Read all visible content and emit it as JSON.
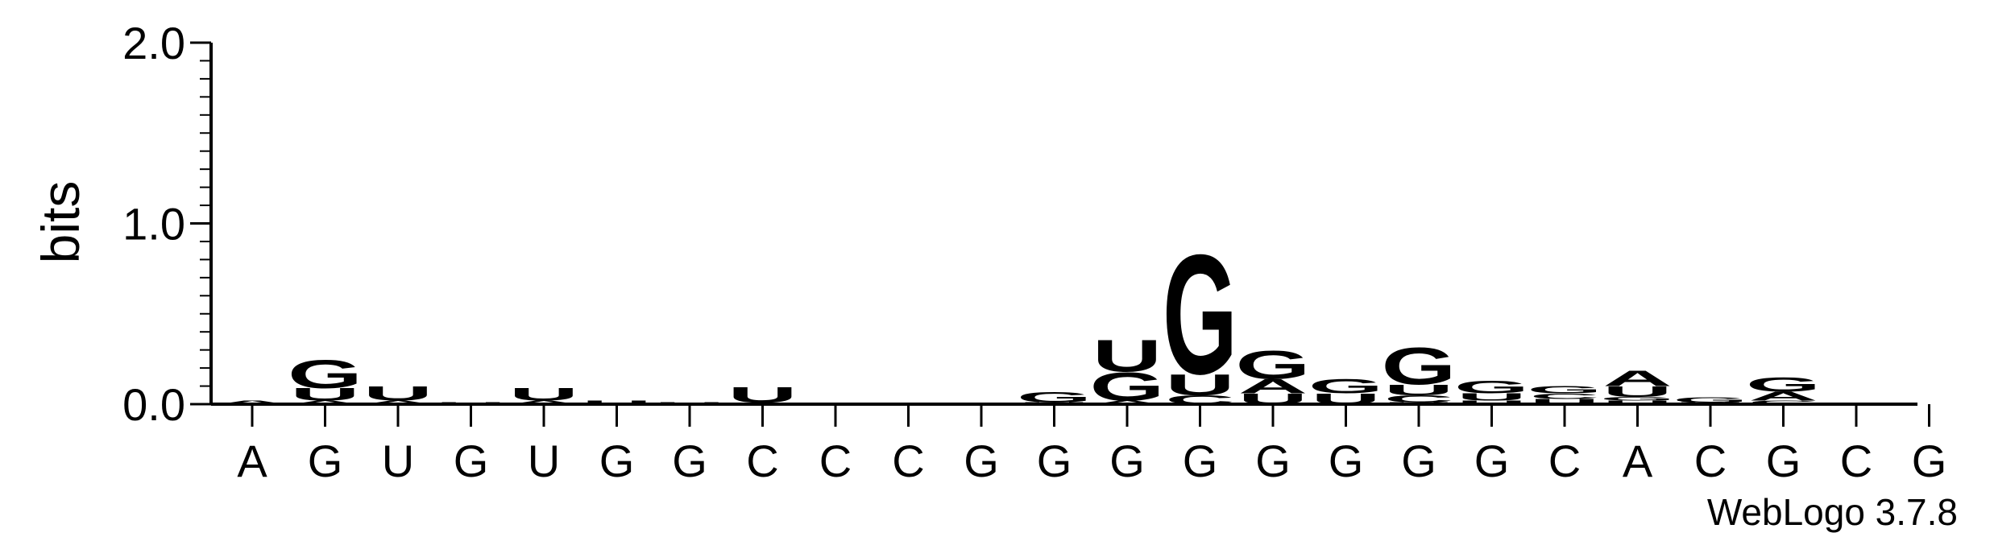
{
  "chart_data": {
    "type": "sequence-logo",
    "ylabel": "bits",
    "ylim": [
      0,
      2.0
    ],
    "yticks": [
      "0.0",
      "1.0",
      "2.0"
    ],
    "credit": "WebLogo 3.7.8",
    "colors": {
      "G": "#1f1ff0",
      "U": "#f7941d",
      "A": "#f7941d",
      "C": "#1f1ff0"
    },
    "positions": [
      {
        "label": "A",
        "stack": [
          {
            "letter": "A",
            "bits": 0.02
          }
        ]
      },
      {
        "label": "G",
        "stack": [
          {
            "letter": "A",
            "bits": 0.02
          },
          {
            "letter": "U",
            "bits": 0.07
          },
          {
            "letter": "G",
            "bits": 0.16
          }
        ]
      },
      {
        "label": "U",
        "stack": [
          {
            "letter": "A",
            "bits": 0.02
          },
          {
            "letter": "U",
            "bits": 0.08
          }
        ]
      },
      {
        "label": "G",
        "stack": [
          {
            "letter": "U",
            "bits": 0.01
          }
        ]
      },
      {
        "label": "U",
        "stack": [
          {
            "letter": "A",
            "bits": 0.02
          },
          {
            "letter": "U",
            "bits": 0.07
          }
        ]
      },
      {
        "label": "G",
        "stack": [
          {
            "letter": "U",
            "bits": 0.02
          }
        ]
      },
      {
        "label": "G",
        "stack": [
          {
            "letter": "U",
            "bits": 0.01
          }
        ]
      },
      {
        "label": "C",
        "stack": [
          {
            "letter": "A",
            "bits": 0.01
          },
          {
            "letter": "U",
            "bits": 0.09
          }
        ]
      },
      {
        "label": "C",
        "stack": []
      },
      {
        "label": "C",
        "stack": []
      },
      {
        "label": "G",
        "stack": []
      },
      {
        "label": "G",
        "stack": [
          {
            "letter": "U",
            "bits": 0.01
          },
          {
            "letter": "G",
            "bits": 0.06
          }
        ]
      },
      {
        "label": "G",
        "stack": [
          {
            "letter": "A",
            "bits": 0.02
          },
          {
            "letter": "G",
            "bits": 0.16
          },
          {
            "letter": "U",
            "bits": 0.18
          }
        ]
      },
      {
        "label": "G",
        "stack": [
          {
            "letter": "C",
            "bits": 0.05
          },
          {
            "letter": "U",
            "bits": 0.12
          },
          {
            "letter": "G",
            "bits": 0.68
          }
        ]
      },
      {
        "label": "G",
        "stack": [
          {
            "letter": "U",
            "bits": 0.06
          },
          {
            "letter": "A",
            "bits": 0.08
          },
          {
            "letter": "G",
            "bits": 0.16
          }
        ]
      },
      {
        "label": "G",
        "stack": [
          {
            "letter": "U",
            "bits": 0.06
          },
          {
            "letter": "G",
            "bits": 0.08
          }
        ]
      },
      {
        "label": "G",
        "stack": [
          {
            "letter": "U",
            "bits": 0.01
          },
          {
            "letter": "C",
            "bits": 0.04
          },
          {
            "letter": "U",
            "bits": 0.06
          },
          {
            "letter": "G",
            "bits": 0.21
          }
        ]
      },
      {
        "label": "G",
        "stack": [
          {
            "letter": "U",
            "bits": 0.02
          },
          {
            "letter": "U",
            "bits": 0.04
          },
          {
            "letter": "G",
            "bits": 0.07
          }
        ]
      },
      {
        "label": "C",
        "stack": [
          {
            "letter": "U",
            "bits": 0.03
          },
          {
            "letter": "C",
            "bits": 0.03
          },
          {
            "letter": "G",
            "bits": 0.04
          }
        ]
      },
      {
        "label": "A",
        "stack": [
          {
            "letter": "U",
            "bits": 0.02
          },
          {
            "letter": "G",
            "bits": 0.02
          },
          {
            "letter": "U",
            "bits": 0.06
          },
          {
            "letter": "A",
            "bits": 0.09
          }
        ]
      },
      {
        "label": "C",
        "stack": [
          {
            "letter": "U",
            "bits": 0.01
          },
          {
            "letter": "G",
            "bits": 0.03
          }
        ]
      },
      {
        "label": "G",
        "stack": [
          {
            "letter": "C",
            "bits": 0.02
          },
          {
            "letter": "A",
            "bits": 0.05
          },
          {
            "letter": "G",
            "bits": 0.08
          }
        ]
      },
      {
        "label": "C",
        "stack": []
      },
      {
        "label": "G",
        "stack": []
      }
    ]
  }
}
